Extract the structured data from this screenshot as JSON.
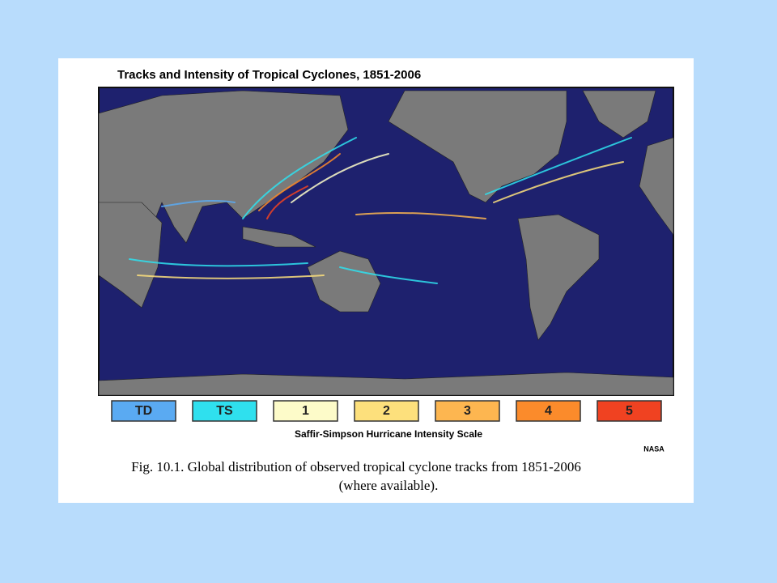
{
  "header": {
    "title": "Tracks and Intensity of Tropical Cyclones, 1851-2006"
  },
  "legend": {
    "title": "Saffir-Simpson Hurricane Intensity Scale",
    "items": [
      {
        "label": "TD",
        "color": "#5aaaf2"
      },
      {
        "label": "TS",
        "color": "#2fe0ee"
      },
      {
        "label": "1",
        "color": "#fdfbc9"
      },
      {
        "label": "2",
        "color": "#fde07c"
      },
      {
        "label": "3",
        "color": "#fdb650"
      },
      {
        "label": "4",
        "color": "#fb8b2b"
      },
      {
        "label": "5",
        "color": "#f04221"
      }
    ]
  },
  "credit": "NASA",
  "caption": {
    "lines": [
      "Fig. 10.1. Global distribution of observed tropical cyclone tracks from 1851-2006",
      "(where available)."
    ]
  }
}
